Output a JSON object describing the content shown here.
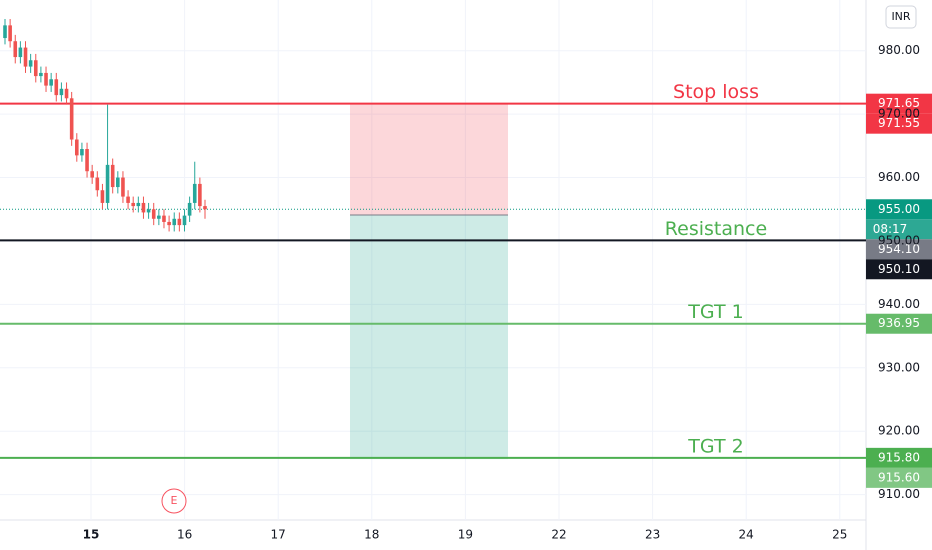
{
  "chart_data": {
    "type": "candlestick",
    "currency": "INR",
    "categories": [
      "15",
      "16",
      "17",
      "18",
      "19",
      "22",
      "23",
      "24",
      "25"
    ],
    "ylim": [
      906,
      988
    ],
    "yticks": [
      {
        "value": 910,
        "label": "910.00"
      },
      {
        "value": 920,
        "label": "920.00"
      },
      {
        "value": 930,
        "label": "930.00"
      },
      {
        "value": 940,
        "label": "940.00"
      },
      {
        "value": 950,
        "label": "950.00"
      },
      {
        "value": 960,
        "label": "960.00"
      },
      {
        "value": 970,
        "label": "970.00"
      },
      {
        "value": 980,
        "label": "980.00"
      }
    ],
    "grid": true,
    "up_color": "#26a69a",
    "down_color": "#ef5350",
    "open": [
      982,
      984,
      981.5,
      979,
      980.5,
      977.5,
      978.5,
      976,
      976.5,
      974.5,
      975.5,
      973,
      974,
      972.5,
      966,
      963.5,
      964.5,
      961,
      960,
      958,
      956,
      962,
      958.5,
      960,
      957,
      956,
      955.5,
      956,
      954.5,
      955,
      953.5,
      954,
      953,
      952.5,
      953.5,
      952.5,
      954,
      956,
      959,
      955.5
    ],
    "high": [
      985,
      985,
      982.5,
      981.5,
      981.5,
      979.5,
      979.5,
      977.5,
      977.5,
      976.5,
      976.5,
      975,
      975,
      973.5,
      967,
      965.5,
      965.5,
      962,
      961,
      959,
      971.5,
      963,
      961,
      961,
      958,
      957,
      957,
      957,
      956,
      956,
      955,
      955,
      954,
      954.5,
      954.5,
      955,
      957,
      962.5,
      960,
      956.5
    ],
    "low": [
      981,
      980.5,
      978,
      978,
      976.5,
      976.5,
      975,
      975,
      973.5,
      973.5,
      972,
      972,
      971.5,
      965,
      962.5,
      962.5,
      960,
      959,
      957,
      955,
      955,
      957.5,
      957.5,
      956,
      955,
      954.5,
      954.5,
      953.5,
      953.5,
      952.5,
      952.5,
      952,
      951.5,
      951.5,
      951.5,
      951.5,
      953,
      955,
      954.5,
      953.5
    ],
    "close": [
      984,
      981.5,
      979,
      980.5,
      977.5,
      978.5,
      976,
      976.5,
      974.5,
      975.5,
      973,
      974,
      972.5,
      966,
      963.5,
      964.5,
      961,
      960,
      958,
      956,
      962,
      958.5,
      960,
      957,
      956,
      955.5,
      956,
      954.5,
      955,
      953.5,
      954,
      953,
      952.5,
      953.5,
      952.5,
      954,
      956,
      959,
      955.5,
      955
    ],
    "current_price": {
      "value": 955,
      "label": "955.00"
    },
    "countdown": "08:17",
    "current_color": "#089981",
    "levels": [
      {
        "label": "Stop loss",
        "value": 971.65,
        "line_color": "#f23645",
        "text_color": "#f23645"
      },
      {
        "label": "Resistance",
        "value": {
          "value": 950.1,
          "label": "950.10"
        },
        "line_color": "#131722",
        "text_color": "#4caf50"
      },
      {
        "label": "TGT 1",
        "value": 936.95,
        "line_color": "#66bb6a",
        "text_color": "#4caf50"
      },
      {
        "label": "TGT 2",
        "value": {
          "value": 915.8,
          "label": "915.80"
        },
        "line_color": "#4caf50",
        "text_color": "#4caf50"
      }
    ],
    "position": {
      "stop": 971.55,
      "entry": {
        "value": 954.1,
        "label": "954.10"
      },
      "target": {
        "value": 915.6,
        "label": "915.60"
      },
      "stop_color": "#f23645",
      "entry_color": "#787b86",
      "target_color": "#81c784"
    },
    "event": "E"
  }
}
